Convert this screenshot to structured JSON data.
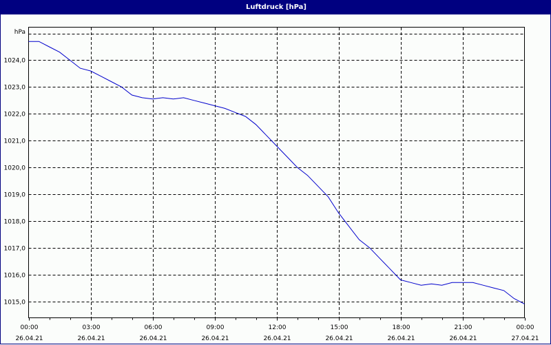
{
  "window": {
    "title": "Luftdruck [hPa]",
    "colors": {
      "titlebar": "#000080",
      "title_text": "#ffffff",
      "background": "#fbfdfb",
      "line": "#0000cc",
      "grid": "#000000"
    }
  },
  "chart_data": {
    "type": "line",
    "title": "Luftdruck [hPa]",
    "xlabel": "",
    "ylabel": "hPa",
    "ylim": [
      1014.4,
      1025.3
    ],
    "xlim_hours": [
      0,
      24
    ],
    "grid": true,
    "legend": null,
    "y_ticks": [
      "1024,0",
      "1023,0",
      "1022,0",
      "1021,0",
      "1020,0",
      "1019,0",
      "1018,0",
      "1017,0",
      "1016,0",
      "1015,0"
    ],
    "y_tick_values": [
      1024,
      1023,
      1022,
      1021,
      1020,
      1019,
      1018,
      1017,
      1016,
      1015
    ],
    "x_ticks": [
      {
        "time": "00:00",
        "date": "26.04.21"
      },
      {
        "time": "03:00",
        "date": "26.04.21"
      },
      {
        "time": "06:00",
        "date": "26.04.21"
      },
      {
        "time": "09:00",
        "date": "26.04.21"
      },
      {
        "time": "12:00",
        "date": "26.04.21"
      },
      {
        "time": "15:00",
        "date": "26.04.21"
      },
      {
        "time": "18:00",
        "date": "26.04.21"
      },
      {
        "time": "21:00",
        "date": "26.04.21"
      },
      {
        "time": "00:00",
        "date": "27.04.21"
      }
    ],
    "series": [
      {
        "name": "Luftdruck",
        "x_hours": [
          0,
          0.5,
          1,
          1.5,
          2,
          2.5,
          3,
          3.5,
          4,
          4.5,
          5,
          5.5,
          6,
          6.5,
          7,
          7.5,
          8,
          8.5,
          9,
          9.5,
          10,
          10.5,
          11,
          11.5,
          12,
          12.5,
          13,
          13.5,
          14,
          14.5,
          15,
          15.5,
          16,
          16.5,
          17,
          17.5,
          18,
          18.5,
          19,
          19.5,
          20,
          20.5,
          21,
          21.5,
          22,
          22.5,
          23,
          23.5,
          24
        ],
        "values": [
          1024.7,
          1024.7,
          1024.5,
          1024.3,
          1024.0,
          1023.7,
          1023.6,
          1023.4,
          1023.2,
          1023.0,
          1022.7,
          1022.6,
          1022.55,
          1022.6,
          1022.55,
          1022.6,
          1022.5,
          1022.4,
          1022.3,
          1022.2,
          1022.05,
          1021.9,
          1021.6,
          1021.2,
          1020.8,
          1020.4,
          1020.0,
          1019.7,
          1019.3,
          1018.9,
          1018.3,
          1017.8,
          1017.3,
          1017.0,
          1016.6,
          1016.2,
          1015.8,
          1015.7,
          1015.6,
          1015.65,
          1015.6,
          1015.7,
          1015.7,
          1015.7,
          1015.6,
          1015.5,
          1015.4,
          1015.1,
          1014.9
        ]
      }
    ]
  }
}
